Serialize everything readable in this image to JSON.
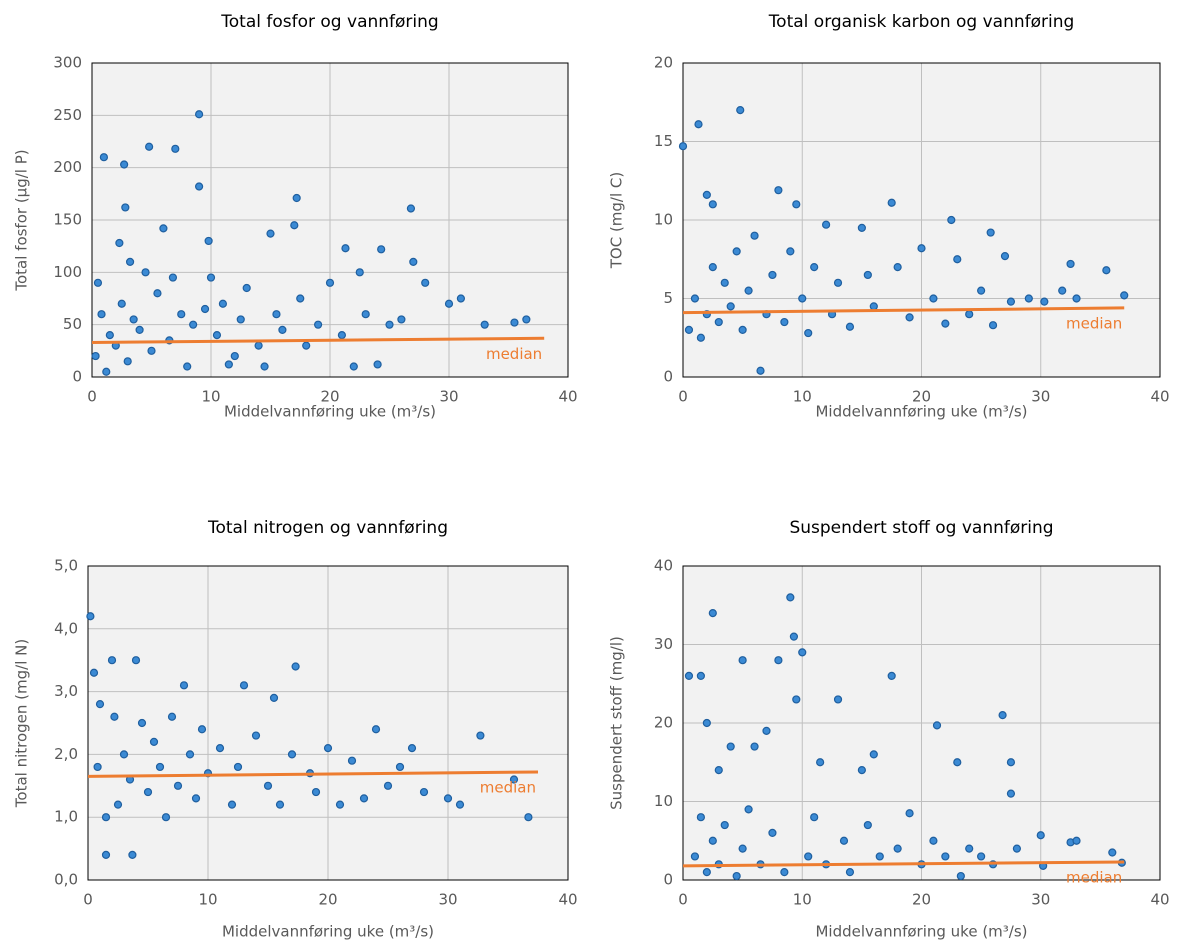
{
  "chart_data": [
    {
      "type": "scatter",
      "title": "Total fosfor og vannføring",
      "x_label": "Middelvannføring uke (m³/s)",
      "y_label": "Total fosfor (µg/l P)",
      "xlim": [
        0,
        40
      ],
      "ylim": [
        0,
        300
      ],
      "xticks": [
        0,
        10,
        20,
        30,
        40
      ],
      "yticks": [
        0,
        50,
        100,
        150,
        200,
        250,
        300
      ],
      "grid": true,
      "series": [
        {
          "color": "#3b8ad4",
          "x": [
            0.3,
            0.5,
            1,
            2.7,
            4.8,
            7,
            9,
            9,
            2.8,
            17.2,
            26.8,
            17,
            6,
            2.3,
            9.8,
            15,
            21.3,
            24.3,
            0.8,
            1.5,
            2,
            2.5,
            3,
            3.5,
            4,
            4.5,
            5,
            5.5,
            6.5,
            7.5,
            8,
            8.5,
            10,
            10.5,
            11,
            12,
            12.5,
            13,
            14,
            14.5,
            15.5,
            16,
            17.5,
            18,
            19,
            20,
            21,
            22,
            22.5,
            23,
            24,
            25,
            26,
            27,
            28,
            30,
            31,
            33,
            35.5,
            36.5,
            1.2,
            3.2,
            6.8,
            11.5,
            9.5
          ],
          "values": [
            20,
            90,
            210,
            203,
            220,
            218,
            251,
            182,
            162,
            171,
            161,
            145,
            142,
            128,
            130,
            137,
            123,
            122,
            60,
            40,
            30,
            70,
            15,
            55,
            45,
            100,
            25,
            80,
            35,
            60,
            10,
            50,
            95,
            40,
            70,
            20,
            55,
            85,
            30,
            10,
            60,
            45,
            75,
            30,
            50,
            90,
            40,
            10,
            100,
            60,
            12,
            50,
            55,
            110,
            90,
            70,
            75,
            50,
            52,
            55,
            5,
            110,
            95,
            12,
            65
          ]
        },
        {
          "name": "median",
          "type": "line",
          "color": "#ed7d31",
          "x": [
            0,
            38
          ],
          "values": [
            33,
            37
          ]
        }
      ]
    },
    {
      "type": "scatter",
      "title": "Total organisk karbon og vannføring",
      "x_label": "Middelvannføring uke (m³/s)",
      "y_label": "TOC  (mg/l C)",
      "xlim": [
        0,
        40
      ],
      "ylim": [
        0,
        20
      ],
      "xticks": [
        0,
        10,
        20,
        30,
        40
      ],
      "yticks": [
        0,
        5,
        10,
        15,
        20
      ],
      "grid": true,
      "series": [
        {
          "color": "#3b8ad4",
          "x": [
            0,
            1.3,
            4.8,
            2,
            2.5,
            8,
            9.5,
            17.5,
            22.5,
            25.8,
            12,
            15,
            0.5,
            1,
            1.5,
            2,
            2.5,
            3,
            3.5,
            4,
            4.5,
            5,
            5.5,
            6,
            6.5,
            7,
            7.5,
            8.5,
            9,
            10,
            10.5,
            11,
            12.5,
            13,
            14,
            15.5,
            16,
            18,
            19,
            20,
            21,
            22,
            23,
            24,
            25,
            26,
            27,
            27.5,
            29,
            30.3,
            31.8,
            32.5,
            33,
            35.5,
            37
          ],
          "values": [
            14.7,
            16.1,
            17,
            11.6,
            11,
            11.9,
            11,
            11.1,
            10,
            9.2,
            9.7,
            9.5,
            3,
            5,
            2.5,
            4,
            7,
            3.5,
            6,
            4.5,
            8,
            3,
            5.5,
            9,
            0.4,
            4,
            6.5,
            3.5,
            8,
            5,
            2.8,
            7,
            4,
            6,
            3.2,
            6.5,
            4.5,
            7,
            3.8,
            8.2,
            5,
            3.4,
            7.5,
            4,
            5.5,
            3.3,
            7.7,
            4.8,
            5,
            4.8,
            5.5,
            7.2,
            5,
            6.8,
            5.2
          ]
        },
        {
          "name": "median",
          "type": "line",
          "color": "#ed7d31",
          "x": [
            0,
            37
          ],
          "values": [
            4.1,
            4.4
          ]
        }
      ]
    },
    {
      "type": "scatter",
      "title": "Total nitrogen og vannføring",
      "x_label": "Middelvannføring uke (m³/s)",
      "y_label": "Total nitrogen (mg/l N)",
      "xlim": [
        0,
        40
      ],
      "ylim": [
        0,
        5
      ],
      "xticks": [
        0,
        10,
        20,
        30,
        40
      ],
      "yticks": [
        {
          "value": 0,
          "label": "0,0"
        },
        {
          "value": 1,
          "label": "1,0"
        },
        {
          "value": 2,
          "label": "2,0"
        },
        {
          "value": 3,
          "label": "3,0"
        },
        {
          "value": 4,
          "label": "4,0"
        },
        {
          "value": 5,
          "label": "5,0"
        }
      ],
      "grid": true,
      "series": [
        {
          "color": "#3b8ad4",
          "x": [
            0.2,
            0.5,
            1,
            1.5,
            3.7,
            2,
            4,
            13,
            17.3,
            8,
            1.5,
            2.5,
            3,
            3.5,
            4.5,
            5,
            5.5,
            6,
            6.5,
            7,
            7.5,
            8.5,
            9,
            9.5,
            10,
            11,
            12,
            12.5,
            14,
            15,
            15.5,
            16,
            17,
            18.5,
            19,
            20,
            21,
            22,
            23,
            24,
            25,
            26,
            27,
            28,
            30,
            31,
            32.7,
            35.5,
            36.7,
            0.8,
            2.2
          ],
          "values": [
            4.2,
            3.3,
            2.8,
            0.4,
            0.4,
            3.5,
            3.5,
            3.1,
            3.4,
            3.1,
            1.0,
            1.2,
            2.0,
            1.6,
            2.5,
            1.4,
            2.2,
            1.8,
            1.0,
            2.6,
            1.5,
            2.0,
            1.3,
            2.4,
            1.7,
            2.1,
            1.2,
            1.8,
            2.3,
            1.5,
            2.9,
            1.2,
            2.0,
            1.7,
            1.4,
            2.1,
            1.2,
            1.9,
            1.3,
            2.4,
            1.5,
            1.8,
            2.1,
            1.4,
            1.3,
            1.2,
            2.3,
            1.6,
            1.0,
            1.8,
            2.6
          ]
        },
        {
          "name": "median",
          "type": "line",
          "color": "#ed7d31",
          "x": [
            0,
            37.5
          ],
          "values": [
            1.65,
            1.72
          ]
        }
      ]
    },
    {
      "type": "scatter",
      "title": "Suspendert stoff og vannføring",
      "x_label": "Middelvannføring uke (m³/s)",
      "y_label": "Suspendert stoff  (mg/l)",
      "xlim": [
        0,
        40
      ],
      "ylim": [
        0,
        40
      ],
      "xticks": [
        0,
        10,
        20,
        30,
        40
      ],
      "yticks": [
        0,
        10,
        20,
        30,
        40
      ],
      "grid": true,
      "series": [
        {
          "color": "#3b8ad4",
          "x": [
            0.5,
            1.5,
            2.5,
            9,
            9.3,
            10,
            5,
            9.5,
            13,
            17.5,
            8,
            21.3,
            26.8,
            2,
            3,
            4,
            6,
            7,
            11.5,
            15,
            16,
            23,
            27.5,
            27.5,
            1,
            1.5,
            2,
            2.5,
            3,
            3.5,
            4.5,
            5,
            5.5,
            6.5,
            7.5,
            8.5,
            10.5,
            11,
            12,
            13.5,
            14,
            15.5,
            16.5,
            18,
            19,
            20,
            21,
            22,
            23.3,
            24,
            25,
            26,
            28,
            30,
            30.2,
            32.5,
            33,
            36,
            36.8
          ],
          "values": [
            26,
            26,
            34,
            36,
            31,
            29,
            28,
            23,
            23,
            26,
            28,
            19.7,
            21,
            20,
            14,
            17,
            17,
            19,
            15,
            14,
            16,
            15,
            15,
            11,
            3,
            8,
            1,
            5,
            2,
            7,
            0.5,
            4,
            9,
            2,
            6,
            1,
            3,
            8,
            2,
            5,
            1,
            7,
            3,
            4,
            8.5,
            2,
            5,
            3,
            0.5,
            4,
            3,
            2,
            4,
            5.7,
            1.8,
            4.8,
            5,
            3.5,
            2.2
          ]
        },
        {
          "name": "median",
          "type": "line",
          "color": "#ed7d31",
          "x": [
            0,
            37
          ],
          "values": [
            1.8,
            2.3
          ]
        }
      ]
    }
  ]
}
